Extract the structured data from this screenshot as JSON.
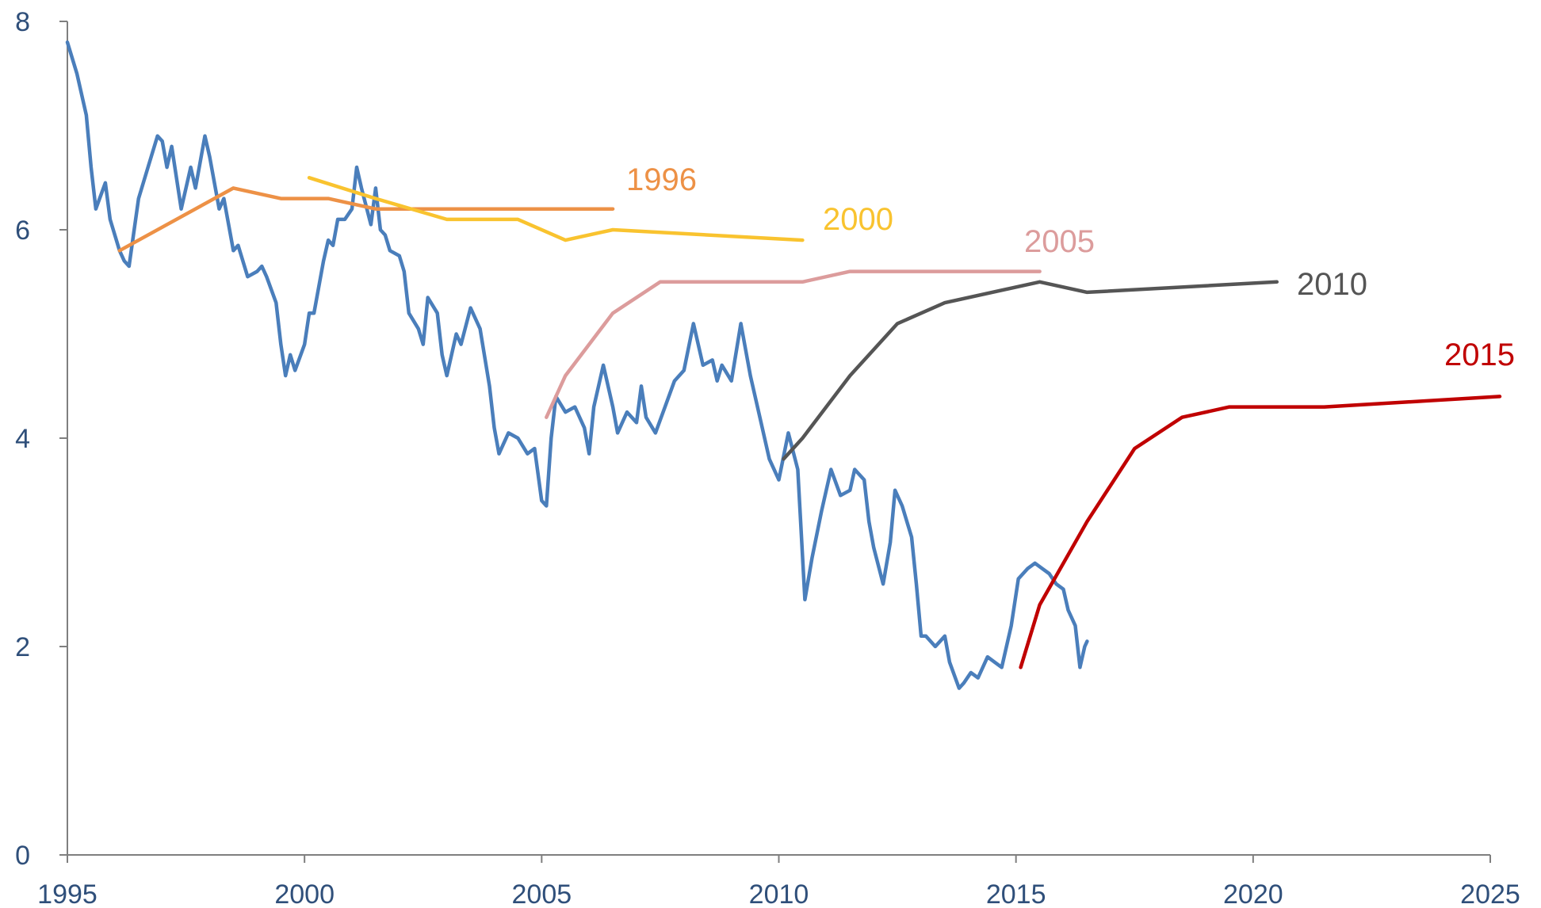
{
  "chart_data": {
    "type": "line",
    "title": "",
    "xlabel": "",
    "ylabel": "",
    "xlim": [
      1995,
      2025
    ],
    "ylim": [
      0,
      8
    ],
    "x_ticks": [
      1995,
      2000,
      2005,
      2010,
      2015,
      2020,
      2025
    ],
    "y_ticks": [
      0,
      2,
      4,
      6,
      8
    ],
    "grid": false,
    "legend": "none",
    "series": [
      {
        "id": "actual",
        "color": "#4a7ebb",
        "points": [
          [
            1995.0,
            7.8
          ],
          [
            1995.2,
            7.5
          ],
          [
            1995.4,
            7.1
          ],
          [
            1995.5,
            6.6
          ],
          [
            1995.6,
            6.2
          ],
          [
            1995.8,
            6.45
          ],
          [
            1995.9,
            6.1
          ],
          [
            1996.1,
            5.8
          ],
          [
            1996.2,
            5.7
          ],
          [
            1996.3,
            5.65
          ],
          [
            1996.5,
            6.3
          ],
          [
            1996.7,
            6.6
          ],
          [
            1996.9,
            6.9
          ],
          [
            1997.0,
            6.85
          ],
          [
            1997.1,
            6.6
          ],
          [
            1997.2,
            6.8
          ],
          [
            1997.4,
            6.2
          ],
          [
            1997.6,
            6.6
          ],
          [
            1997.7,
            6.4
          ],
          [
            1997.9,
            6.9
          ],
          [
            1998.0,
            6.7
          ],
          [
            1998.2,
            6.2
          ],
          [
            1998.3,
            6.3
          ],
          [
            1998.5,
            5.8
          ],
          [
            1998.6,
            5.85
          ],
          [
            1998.8,
            5.55
          ],
          [
            1999.0,
            5.6
          ],
          [
            1999.1,
            5.65
          ],
          [
            1999.2,
            5.55
          ],
          [
            1999.4,
            5.3
          ],
          [
            1999.5,
            4.9
          ],
          [
            1999.6,
            4.6
          ],
          [
            1999.7,
            4.8
          ],
          [
            1999.8,
            4.65
          ],
          [
            2000.0,
            4.9
          ],
          [
            2000.1,
            5.2
          ],
          [
            2000.2,
            5.2
          ],
          [
            2000.4,
            5.7
          ],
          [
            2000.5,
            5.9
          ],
          [
            2000.6,
            5.85
          ],
          [
            2000.7,
            6.1
          ],
          [
            2000.85,
            6.1
          ],
          [
            2001.0,
            6.2
          ],
          [
            2001.1,
            6.6
          ],
          [
            2001.2,
            6.4
          ],
          [
            2001.4,
            6.05
          ],
          [
            2001.5,
            6.4
          ],
          [
            2001.6,
            6.0
          ],
          [
            2001.7,
            5.95
          ],
          [
            2001.8,
            5.8
          ],
          [
            2002.0,
            5.75
          ],
          [
            2002.1,
            5.6
          ],
          [
            2002.2,
            5.2
          ],
          [
            2002.4,
            5.05
          ],
          [
            2002.5,
            4.9
          ],
          [
            2002.6,
            5.35
          ],
          [
            2002.8,
            5.2
          ],
          [
            2002.9,
            4.8
          ],
          [
            2003.0,
            4.6
          ],
          [
            2003.2,
            5.0
          ],
          [
            2003.3,
            4.9
          ],
          [
            2003.5,
            5.25
          ],
          [
            2003.7,
            5.05
          ],
          [
            2003.9,
            4.5
          ],
          [
            2004.0,
            4.1
          ],
          [
            2004.1,
            3.85
          ],
          [
            2004.3,
            4.05
          ],
          [
            2004.5,
            4.0
          ],
          [
            2004.7,
            3.85
          ],
          [
            2004.85,
            3.9
          ],
          [
            2005.0,
            3.4
          ],
          [
            2005.1,
            3.35
          ],
          [
            2005.2,
            4.0
          ],
          [
            2005.3,
            4.4
          ],
          [
            2005.5,
            4.25
          ],
          [
            2005.7,
            4.3
          ],
          [
            2005.9,
            4.1
          ],
          [
            2006.0,
            3.85
          ],
          [
            2006.1,
            4.3
          ],
          [
            2006.3,
            4.7
          ],
          [
            2006.5,
            4.3
          ],
          [
            2006.6,
            4.05
          ],
          [
            2006.8,
            4.25
          ],
          [
            2007.0,
            4.15
          ],
          [
            2007.1,
            4.5
          ],
          [
            2007.2,
            4.2
          ],
          [
            2007.4,
            4.05
          ],
          [
            2007.6,
            4.3
          ],
          [
            2007.8,
            4.55
          ],
          [
            2008.0,
            4.65
          ],
          [
            2008.2,
            5.1
          ],
          [
            2008.4,
            4.7
          ],
          [
            2008.6,
            4.75
          ],
          [
            2008.7,
            4.55
          ],
          [
            2008.8,
            4.7
          ],
          [
            2009.0,
            4.55
          ],
          [
            2009.2,
            5.1
          ],
          [
            2009.4,
            4.6
          ],
          [
            2009.6,
            4.2
          ],
          [
            2009.8,
            3.8
          ],
          [
            2010.0,
            3.6
          ],
          [
            2010.2,
            4.05
          ],
          [
            2010.4,
            3.7
          ],
          [
            2010.55,
            2.45
          ],
          [
            2010.7,
            2.85
          ],
          [
            2010.9,
            3.3
          ],
          [
            2011.1,
            3.7
          ],
          [
            2011.3,
            3.45
          ],
          [
            2011.5,
            3.5
          ],
          [
            2011.6,
            3.7
          ],
          [
            2011.8,
            3.6
          ],
          [
            2011.9,
            3.2
          ],
          [
            2012.0,
            2.95
          ],
          [
            2012.2,
            2.6
          ],
          [
            2012.35,
            3.0
          ],
          [
            2012.45,
            3.5
          ],
          [
            2012.6,
            3.35
          ],
          [
            2012.8,
            3.05
          ],
          [
            2012.9,
            2.6
          ],
          [
            2013.0,
            2.1
          ],
          [
            2013.1,
            2.1
          ],
          [
            2013.3,
            2.0
          ],
          [
            2013.5,
            2.1
          ],
          [
            2013.6,
            1.85
          ],
          [
            2013.8,
            1.6
          ],
          [
            2013.9,
            1.65
          ],
          [
            2014.05,
            1.75
          ],
          [
            2014.2,
            1.7
          ],
          [
            2014.4,
            1.9
          ],
          [
            2014.55,
            1.85
          ],
          [
            2014.7,
            1.8
          ],
          [
            2014.9,
            2.2
          ],
          [
            2015.05,
            2.65
          ],
          [
            2015.25,
            2.75
          ],
          [
            2015.4,
            2.8
          ],
          [
            2015.55,
            2.75
          ],
          [
            2015.7,
            2.7
          ],
          [
            2015.85,
            2.6
          ],
          [
            2016.0,
            2.55
          ],
          [
            2016.1,
            2.35
          ],
          [
            2016.25,
            2.2
          ],
          [
            2016.35,
            1.8
          ],
          [
            2016.45,
            2.0
          ],
          [
            2016.5,
            2.05
          ]
        ]
      },
      {
        "id": "f1996",
        "color": "#ed9146",
        "label": "1996",
        "points": [
          [
            1996.1,
            5.8
          ],
          [
            1998.5,
            6.4
          ],
          [
            1999.5,
            6.3
          ],
          [
            2000.5,
            6.3
          ],
          [
            2001.5,
            6.2
          ],
          [
            2006.5,
            6.2
          ]
        ]
      },
      {
        "id": "f2000",
        "color": "#f9c32f",
        "label": "2000",
        "points": [
          [
            2000.1,
            6.5
          ],
          [
            2001.5,
            6.3
          ],
          [
            2003.0,
            6.1
          ],
          [
            2004.5,
            6.1
          ],
          [
            2005.5,
            5.9
          ],
          [
            2006.5,
            6.0
          ],
          [
            2010.5,
            5.9
          ]
        ]
      },
      {
        "id": "f2005",
        "color": "#dc9c9c",
        "label": "2005",
        "points": [
          [
            2005.1,
            4.2
          ],
          [
            2005.5,
            4.6
          ],
          [
            2006.5,
            5.2
          ],
          [
            2007.5,
            5.5
          ],
          [
            2008.5,
            5.5
          ],
          [
            2010.5,
            5.5
          ],
          [
            2011.5,
            5.6
          ],
          [
            2015.5,
            5.6
          ]
        ]
      },
      {
        "id": "f2010",
        "color": "#555555",
        "label": "2010",
        "points": [
          [
            2010.1,
            3.8
          ],
          [
            2010.5,
            4.0
          ],
          [
            2011.5,
            4.6
          ],
          [
            2012.5,
            5.1
          ],
          [
            2013.5,
            5.3
          ],
          [
            2015.5,
            5.5
          ],
          [
            2016.5,
            5.4
          ],
          [
            2020.5,
            5.5
          ]
        ]
      },
      {
        "id": "f2015",
        "color": "#c00000",
        "label": "2015",
        "points": [
          [
            2015.1,
            1.8
          ],
          [
            2015.5,
            2.4
          ],
          [
            2016.5,
            3.2
          ],
          [
            2017.5,
            3.9
          ],
          [
            2018.5,
            4.2
          ],
          [
            2019.5,
            4.3
          ],
          [
            2021.5,
            4.3
          ],
          [
            2025.2,
            4.4
          ]
        ]
      }
    ]
  }
}
